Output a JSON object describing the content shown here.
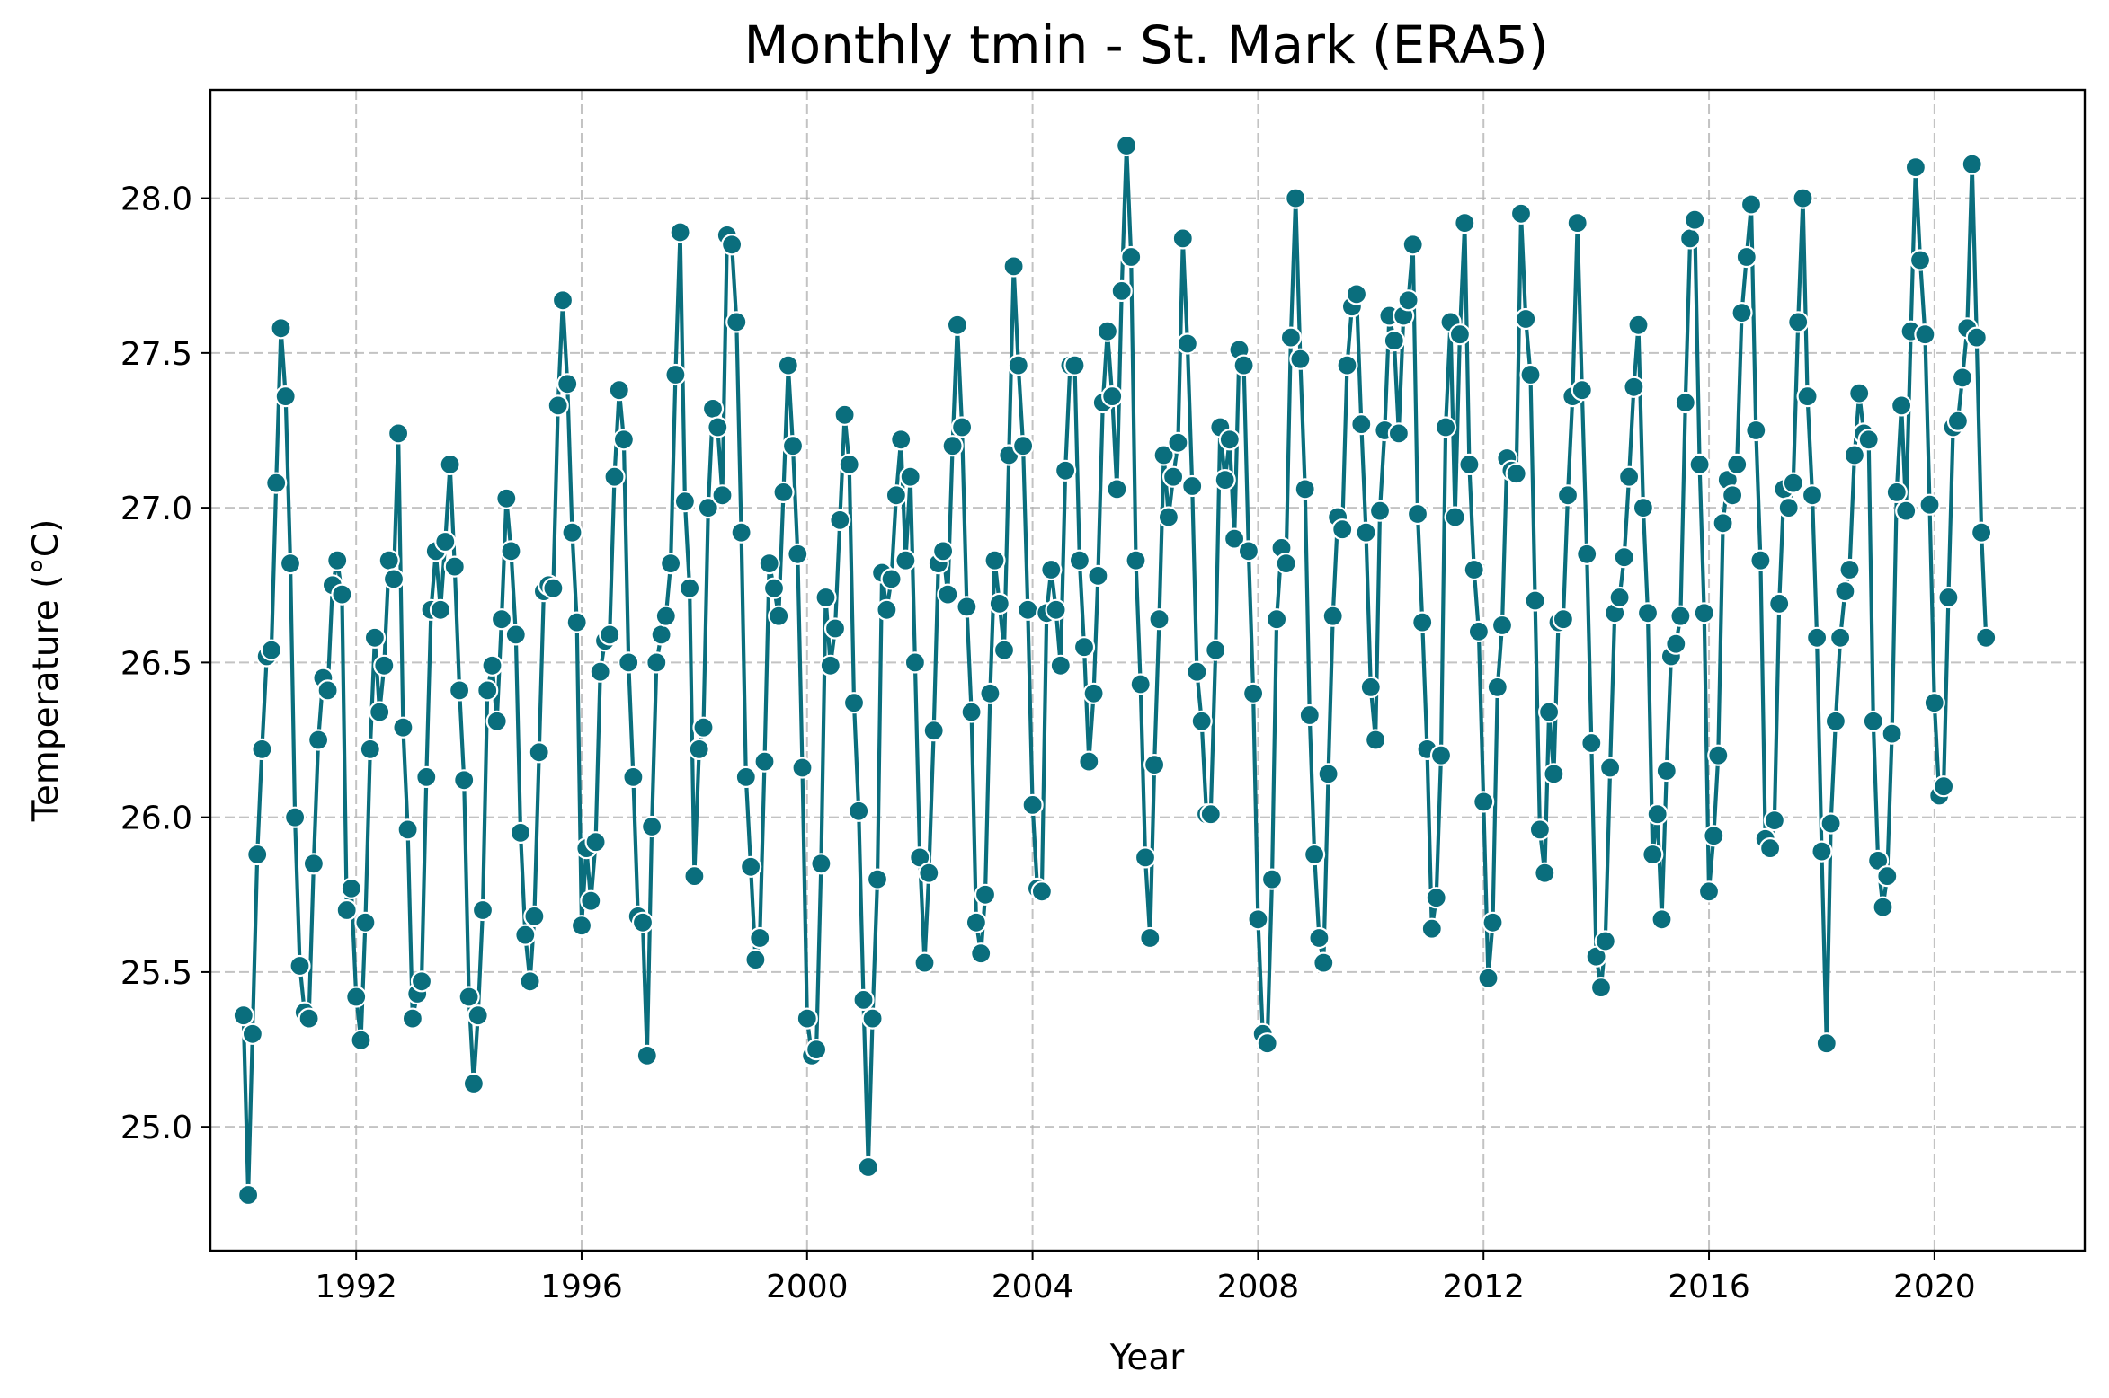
{
  "chart_data": {
    "type": "line",
    "title": "Monthly tmin - St. Mark (ERA5)",
    "xlabel": "Year",
    "ylabel": "Temperature (°C)",
    "x_start": "1990-01",
    "x_freq": "monthly",
    "xlim": [
      "1989-06-01",
      "2022-09-01"
    ],
    "ylim": [
      24.6,
      28.35
    ],
    "x_ticks": [
      "1992",
      "1996",
      "2000",
      "2004",
      "2008",
      "2012",
      "2016",
      "2020"
    ],
    "y_ticks": [
      "25.0",
      "25.5",
      "26.0",
      "26.5",
      "27.0",
      "27.5",
      "28.0"
    ],
    "grid": true,
    "colors": {
      "line": "#0a6e7d",
      "marker_edge": "#ffffff"
    },
    "series": [
      {
        "values": [
          25.36,
          24.78,
          25.3,
          25.88,
          26.22,
          26.52,
          26.54,
          27.08,
          27.58,
          27.36,
          26.82,
          26.0,
          25.52,
          25.37,
          25.35,
          25.85,
          26.25,
          26.45,
          26.41,
          26.75,
          26.83,
          26.72,
          25.7,
          25.77,
          25.42,
          25.28,
          25.66,
          26.22,
          26.58,
          26.34,
          26.49,
          26.83,
          26.77,
          27.24,
          26.29,
          25.96,
          25.35,
          25.43,
          25.47,
          26.13,
          26.67,
          26.86,
          26.67,
          26.89,
          27.14,
          26.81,
          26.41,
          26.12,
          25.42,
          25.14,
          25.36,
          25.7,
          26.41,
          26.49,
          26.31,
          26.64,
          27.03,
          26.86,
          26.59,
          25.95,
          25.62,
          25.47,
          25.68,
          26.21,
          26.73,
          26.75,
          26.74,
          27.33,
          27.67,
          27.4,
          26.92,
          26.63,
          25.65,
          25.9,
          25.73,
          25.92,
          26.47,
          26.57,
          26.59,
          27.1,
          27.38,
          27.22,
          26.5,
          26.13,
          25.68,
          25.66,
          25.23,
          25.97,
          26.5,
          26.59,
          26.65,
          26.82,
          27.43,
          27.89,
          27.02,
          26.74,
          25.81,
          26.22,
          26.29,
          27.0,
          27.32,
          27.26,
          27.04,
          27.88,
          27.85,
          27.6,
          26.92,
          26.13,
          25.84,
          25.54,
          25.61,
          26.18,
          26.82,
          26.74,
          26.65,
          27.05,
          27.46,
          27.2,
          26.85,
          26.16,
          25.35,
          25.23,
          25.25,
          25.85,
          26.71,
          26.49,
          26.61,
          26.96,
          27.3,
          27.14,
          26.37,
          26.02,
          25.41,
          24.87,
          25.35,
          25.8,
          26.79,
          26.67,
          26.77,
          27.04,
          27.22,
          26.83,
          27.1,
          26.5,
          25.87,
          25.53,
          25.82,
          26.28,
          26.82,
          26.86,
          26.72,
          27.2,
          27.59,
          27.26,
          26.68,
          26.34,
          25.66,
          25.56,
          25.75,
          26.4,
          26.83,
          26.69,
          26.54,
          27.17,
          27.78,
          27.46,
          27.2,
          26.67,
          26.04,
          25.77,
          25.76,
          26.66,
          26.8,
          26.67,
          26.49,
          27.12,
          27.46,
          27.46,
          26.83,
          26.55,
          26.18,
          26.4,
          26.78,
          27.34,
          27.57,
          27.36,
          27.06,
          27.7,
          28.17,
          27.81,
          26.83,
          26.43,
          25.87,
          25.61,
          26.17,
          26.64,
          27.17,
          26.97,
          27.1,
          27.21,
          27.87,
          27.53,
          27.07,
          26.47,
          26.31,
          26.01,
          26.01,
          26.54,
          27.26,
          27.09,
          27.22,
          26.9,
          27.51,
          27.46,
          26.86,
          26.4,
          25.67,
          25.3,
          25.27,
          25.8,
          26.64,
          26.87,
          26.82,
          27.55,
          28.0,
          27.48,
          27.06,
          26.33,
          25.88,
          25.61,
          25.53,
          26.14,
          26.65,
          26.97,
          26.93,
          27.46,
          27.65,
          27.69,
          27.27,
          26.92,
          26.42,
          26.25,
          26.99,
          27.25,
          27.62,
          27.54,
          27.24,
          27.62,
          27.67,
          27.85,
          26.98,
          26.63,
          26.22,
          25.64,
          25.74,
          26.2,
          27.26,
          27.6,
          26.97,
          27.56,
          27.92,
          27.14,
          26.8,
          26.6,
          26.05,
          25.48,
          25.66,
          26.42,
          26.62,
          27.16,
          27.12,
          27.11,
          27.95,
          27.61,
          27.43,
          26.7,
          25.96,
          25.82,
          26.34,
          26.14,
          26.63,
          26.64,
          27.04,
          27.36,
          27.92,
          27.38,
          26.85,
          26.24,
          25.55,
          25.45,
          25.6,
          26.16,
          26.66,
          26.71,
          26.84,
          27.1,
          27.39,
          27.59,
          27.0,
          26.66,
          25.88,
          26.01,
          25.67,
          26.15,
          26.52,
          26.56,
          26.65,
          27.34,
          27.87,
          27.93,
          27.14,
          26.66,
          25.76,
          25.94,
          26.2,
          26.95,
          27.09,
          27.04,
          27.14,
          27.63,
          27.81,
          27.98,
          27.25,
          26.83,
          25.93,
          25.9,
          25.99,
          26.69,
          27.06,
          27.0,
          27.08,
          27.6,
          28.0,
          27.36,
          27.04,
          26.58,
          25.89,
          25.27,
          25.98,
          26.31,
          26.58,
          26.73,
          26.8,
          27.17,
          27.37,
          27.24,
          27.22,
          26.31,
          25.86,
          25.71,
          25.81,
          26.27,
          27.05,
          27.33,
          26.99,
          27.57,
          28.1,
          27.8,
          27.56,
          27.01,
          26.37,
          26.07,
          26.1,
          26.71,
          27.26,
          27.28,
          27.42,
          27.58,
          28.11,
          27.55,
          26.92,
          26.58
        ]
      }
    ]
  }
}
